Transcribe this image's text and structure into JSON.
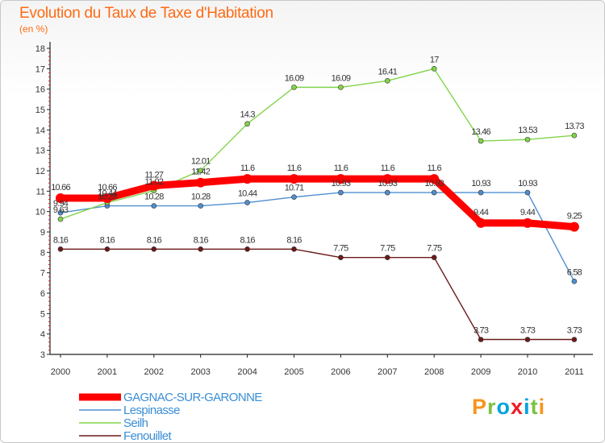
{
  "header": {
    "title": "Evolution du Taux de Taxe d'Habitation",
    "unit": "(en %)"
  },
  "logo": {
    "letters": [
      "P",
      "r",
      "o",
      "x",
      "i",
      "t",
      "i"
    ],
    "colors": [
      "#f7941d",
      "#7ac143",
      "#00a3e0",
      "#ed1c24",
      "#00a3e0",
      "#7ac143",
      "#f7941d"
    ]
  },
  "chart_data": {
    "type": "line",
    "x": [
      "2000",
      "2001",
      "2002",
      "2003",
      "2004",
      "2005",
      "2006",
      "2007",
      "2008",
      "2009",
      "2010",
      "2011"
    ],
    "ylim": [
      3,
      18
    ],
    "yticks": [
      "3",
      "4",
      "5",
      "6",
      "7",
      "8",
      "9",
      "10",
      "11",
      "12",
      "13",
      "14",
      "15",
      "16",
      "17",
      "18"
    ],
    "grid": false,
    "legend_position": "bottom-left",
    "series": [
      {
        "name": "GAGNAC-SUR-GARONNE",
        "color": "#ff0000",
        "emphasis": true,
        "values": [
          10.66,
          10.66,
          11.27,
          11.42,
          11.6,
          11.6,
          11.6,
          11.6,
          11.6,
          9.44,
          9.44,
          9.25
        ],
        "labels": [
          "10.66",
          "10.66",
          "11.27",
          "11.42",
          "11.6",
          "11.6",
          "11.6",
          "11.6",
          "11.6",
          "9.44",
          "9.44",
          "9.25"
        ]
      },
      {
        "name": "Lespinasse",
        "color": "#4f8fd0",
        "values": [
          9.94,
          10.28,
          10.28,
          10.28,
          10.44,
          10.71,
          10.93,
          10.93,
          10.93,
          10.93,
          10.93,
          6.58
        ],
        "labels": [
          "9.94",
          "10.28",
          "10.28",
          "10.28",
          "10.44",
          "10.71",
          "10.93",
          "10.93",
          "10.93",
          "10.93",
          "10.93",
          "6.58"
        ]
      },
      {
        "name": "Seilh",
        "color": "#82d44a",
        "values": [
          9.63,
          10.44,
          11.02,
          12.01,
          14.3,
          16.09,
          16.09,
          16.41,
          17,
          13.46,
          13.53,
          13.73
        ],
        "labels": [
          "9.63",
          "10.44",
          "11.02",
          "12.01",
          "14.3",
          "16.09",
          "16.09",
          "16.41",
          "17",
          "13.46",
          "13.53",
          "13.73"
        ]
      },
      {
        "name": "Fenouillet",
        "color": "#6b1a1a",
        "values": [
          8.16,
          8.16,
          8.16,
          8.16,
          8.16,
          8.16,
          7.75,
          7.75,
          7.75,
          3.73,
          3.73,
          3.73
        ],
        "labels": [
          "8.16",
          "8.16",
          "8.16",
          "8.16",
          "8.16",
          "8.16",
          "7.75",
          "7.75",
          "7.75",
          "3.73",
          "3.73",
          "3.73"
        ]
      }
    ]
  }
}
